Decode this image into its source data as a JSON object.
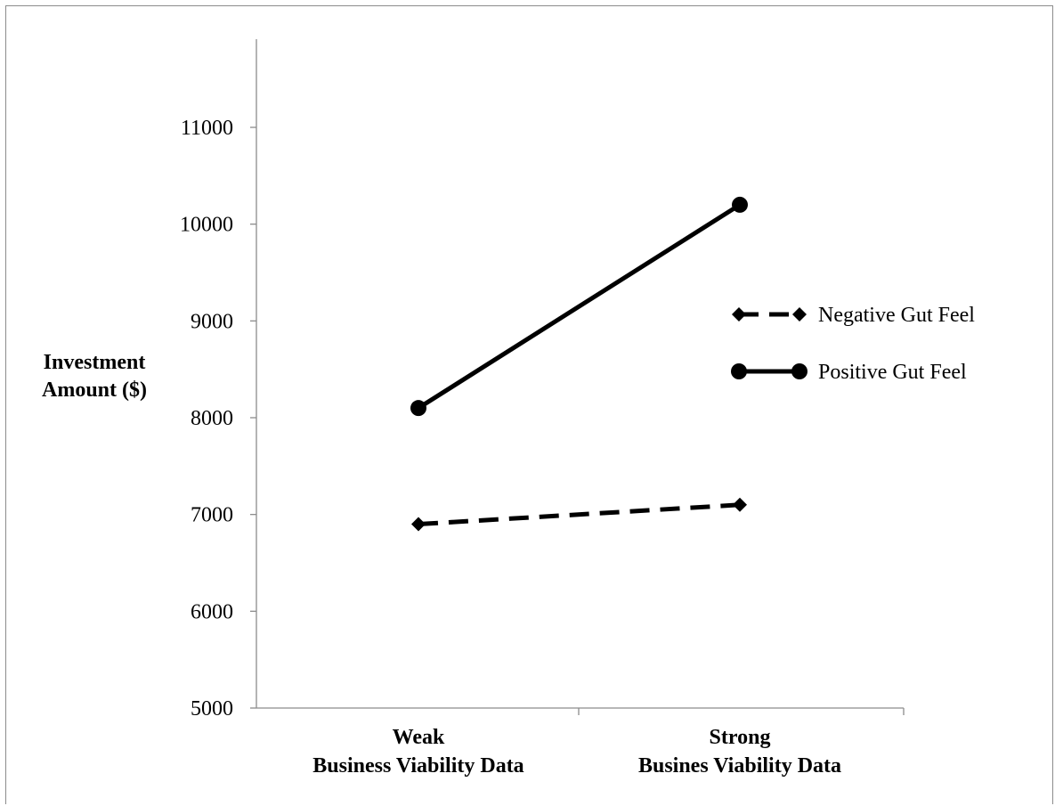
{
  "chart_data": {
    "type": "line",
    "title": "",
    "ylabel": [
      "Investment",
      "Amount ($)"
    ],
    "categories": [
      [
        "Weak",
        "Business Viability Data"
      ],
      [
        "Strong",
        "Busines Viability Data"
      ]
    ],
    "ylim": [
      5000,
      11000
    ],
    "yticks": [
      5000,
      6000,
      7000,
      8000,
      9000,
      10000,
      11000
    ],
    "grid": false,
    "legend_position": "right",
    "series": [
      {
        "name": "Negative Gut Feel",
        "values": [
          6900,
          7100
        ],
        "style": "dashed",
        "marker": "diamond",
        "color": "#000000"
      },
      {
        "name": "Positive Gut Feel",
        "values": [
          8100,
          10200
        ],
        "style": "solid",
        "marker": "circle",
        "color": "#000000"
      }
    ]
  }
}
